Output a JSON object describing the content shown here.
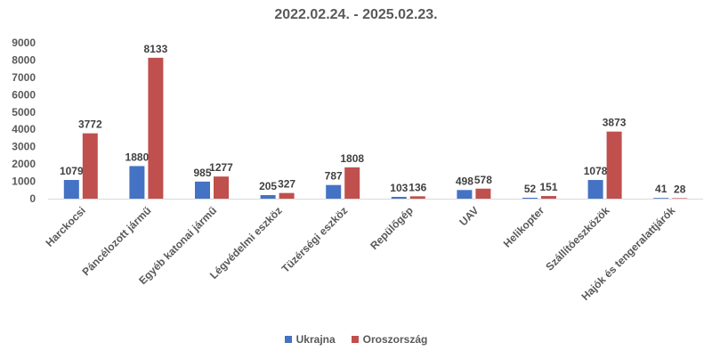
{
  "chart_data": {
    "type": "bar",
    "title": "2022.02.24. - 2025.02.23.",
    "xlabel": "",
    "ylabel": "",
    "ylim": [
      0,
      9000
    ],
    "yticks": [
      0,
      1000,
      2000,
      3000,
      4000,
      5000,
      6000,
      7000,
      8000,
      9000
    ],
    "grid": false,
    "legend_position": "bottom",
    "categories": [
      "Harckocsi",
      "Páncélozott jármű",
      "Egyéb katonai jármű",
      "Légvédelmi eszköz",
      "Tüzérségi eszköz",
      "Repülőgép",
      "UAV",
      "Helikopter",
      "Szállítóeszközök",
      "Hajók és tengeralattjárók"
    ],
    "series": [
      {
        "name": "Ukrajna",
        "color": "#4472C4",
        "values": [
          1079,
          1880,
          985,
          205,
          787,
          103,
          498,
          52,
          1078,
          41
        ]
      },
      {
        "name": "Oroszország",
        "color": "#C0504D",
        "values": [
          3772,
          8133,
          1277,
          327,
          1808,
          136,
          578,
          151,
          3873,
          28
        ]
      }
    ]
  }
}
